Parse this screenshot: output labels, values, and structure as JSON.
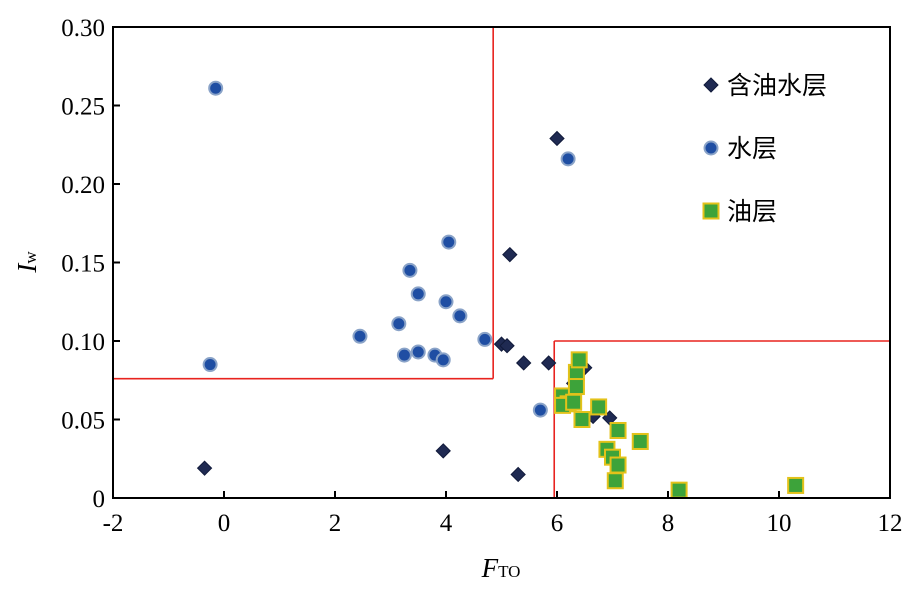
{
  "chart_data": {
    "type": "scatter",
    "xlabel": "F",
    "xlabel_sub": "TO",
    "ylabel": "I",
    "ylabel_sub": "w",
    "xlim": [
      -2,
      12
    ],
    "ylim": [
      0,
      0.3
    ],
    "x_ticks": [
      "-2",
      "0",
      "2",
      "4",
      "6",
      "8",
      "10",
      "12"
    ],
    "y_ticks": [
      "0",
      "0.05",
      "0.10",
      "0.15",
      "0.20",
      "0.25",
      "0.30"
    ],
    "grid": false,
    "legend_position": "top-right",
    "series": [
      {
        "name": "含油水层",
        "marker": "diamond",
        "color": "#1f2a52",
        "points": [
          [
            -0.35,
            0.019
          ],
          [
            3.95,
            0.03
          ],
          [
            5.15,
            0.155
          ],
          [
            5.0,
            0.098
          ],
          [
            5.1,
            0.097
          ],
          [
            5.4,
            0.086
          ],
          [
            5.3,
            0.015
          ],
          [
            5.85,
            0.086
          ],
          [
            6.0,
            0.229
          ],
          [
            6.3,
            0.073
          ],
          [
            6.5,
            0.083
          ],
          [
            6.65,
            0.052
          ],
          [
            6.95,
            0.051
          ]
        ]
      },
      {
        "name": "水层",
        "marker": "circle",
        "color": "#1f4ea3",
        "points": [
          [
            -0.15,
            0.261
          ],
          [
            -0.25,
            0.085
          ],
          [
            2.45,
            0.103
          ],
          [
            3.15,
            0.111
          ],
          [
            3.25,
            0.091
          ],
          [
            3.5,
            0.093
          ],
          [
            3.8,
            0.091
          ],
          [
            3.95,
            0.088
          ],
          [
            3.35,
            0.145
          ],
          [
            3.5,
            0.13
          ],
          [
            4.0,
            0.125
          ],
          [
            4.25,
            0.116
          ],
          [
            4.05,
            0.163
          ],
          [
            4.7,
            0.101
          ],
          [
            5.7,
            0.056
          ],
          [
            6.2,
            0.216
          ]
        ]
      },
      {
        "name": "油层",
        "marker": "square",
        "color": "#3da33a",
        "points": [
          [
            6.1,
            0.065
          ],
          [
            6.2,
            0.06
          ],
          [
            6.1,
            0.059
          ],
          [
            6.35,
            0.08
          ],
          [
            6.4,
            0.088
          ],
          [
            6.35,
            0.071
          ],
          [
            6.3,
            0.061
          ],
          [
            6.45,
            0.05
          ],
          [
            6.75,
            0.058
          ],
          [
            6.9,
            0.031
          ],
          [
            7.0,
            0.026
          ],
          [
            7.1,
            0.043
          ],
          [
            7.1,
            0.021
          ],
          [
            7.05,
            0.011
          ],
          [
            7.5,
            0.036
          ],
          [
            8.2,
            0.005
          ],
          [
            10.3,
            0.008
          ]
        ]
      }
    ],
    "boundary_lines": [
      {
        "x": [
          -2,
          4.85
        ],
        "y": [
          0.076,
          0.076
        ]
      },
      {
        "x": [
          4.85,
          4.85
        ],
        "y": [
          0.076,
          0.3
        ]
      },
      {
        "x": [
          5.95,
          5.95
        ],
        "y": [
          0,
          0.1
        ]
      },
      {
        "x": [
          5.95,
          12
        ],
        "y": [
          0.1,
          0.1
        ]
      }
    ],
    "boundary_color": "#e8231f"
  }
}
